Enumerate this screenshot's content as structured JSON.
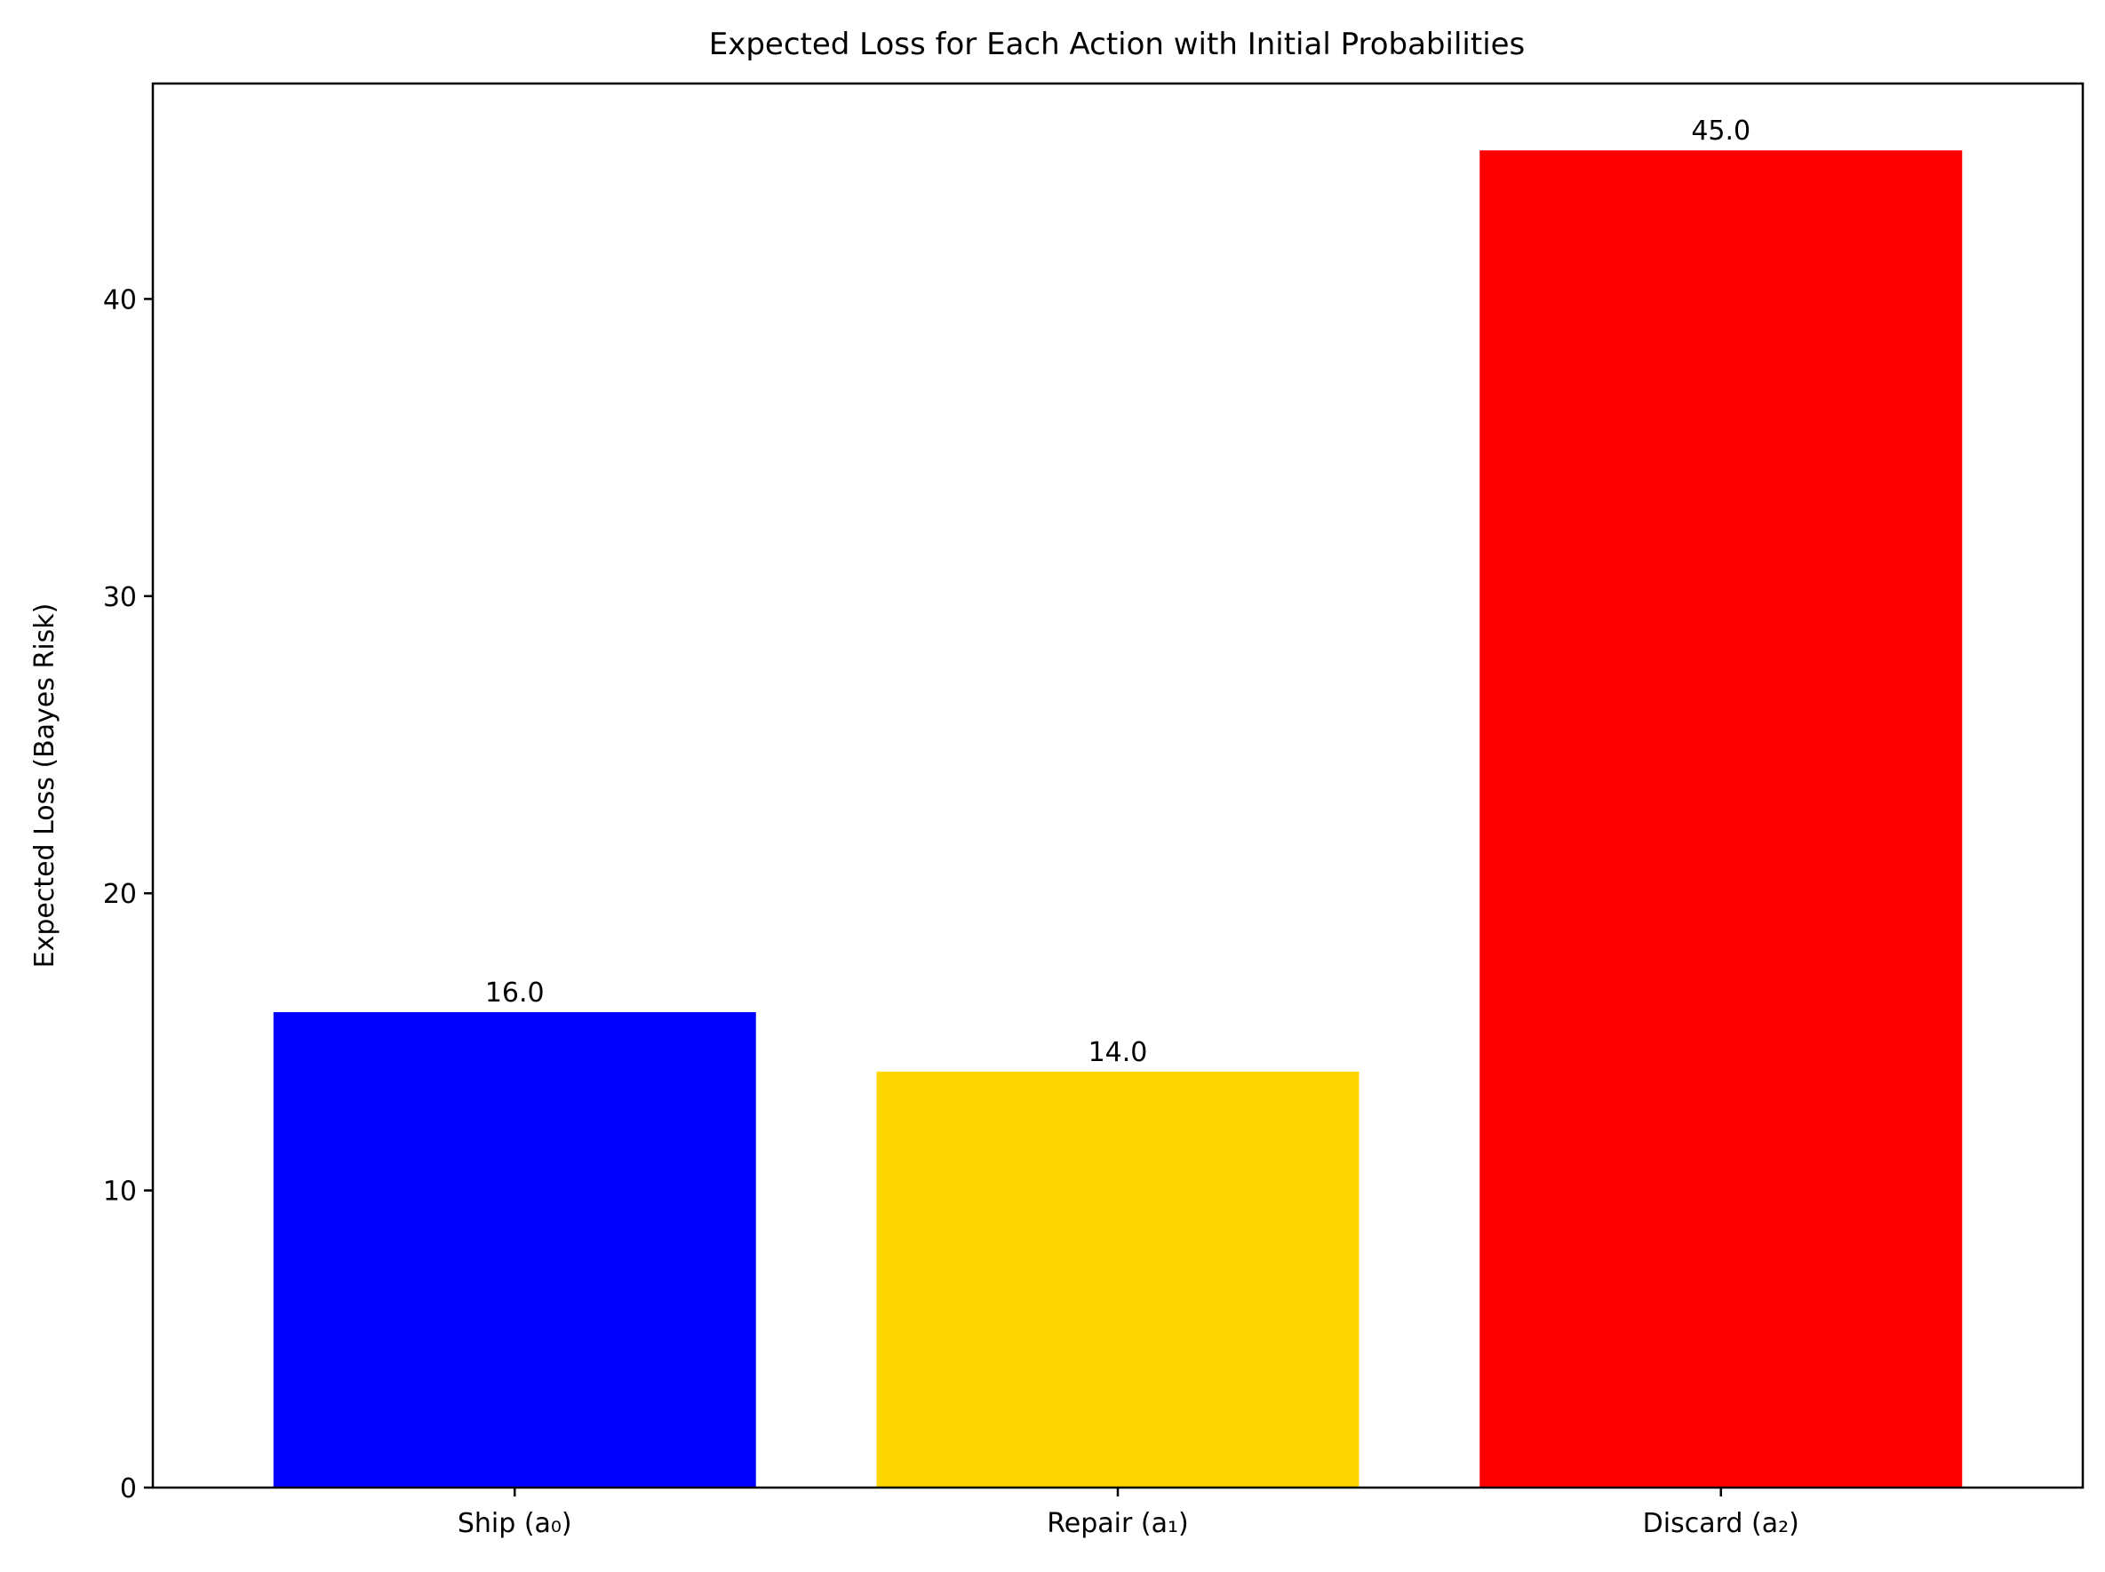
{
  "chart_data": {
    "type": "bar",
    "title": "Expected Loss for Each Action with Initial Probabilities",
    "xlabel": "",
    "ylabel": "Expected Loss (Bayes Risk)",
    "categories": [
      "Ship (a₀)",
      "Repair (a₁)",
      "Discard (a₂)"
    ],
    "values": [
      16.0,
      14.0,
      45.0
    ],
    "value_labels": [
      "16.0",
      "14.0",
      "45.0"
    ],
    "colors": [
      "#0000ff",
      "#ffd700",
      "#ff0000"
    ],
    "yticks": [
      0,
      10,
      20,
      30,
      40
    ],
    "ytick_labels": [
      "0",
      "10",
      "20",
      "30",
      "40"
    ],
    "ylim": [
      0,
      47.25
    ],
    "grid": false,
    "legend": "none"
  }
}
